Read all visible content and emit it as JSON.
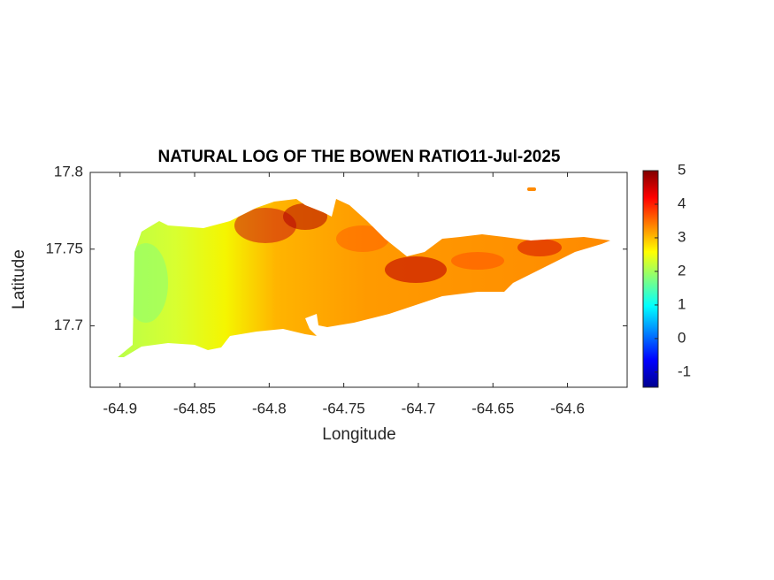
{
  "chart_data": {
    "type": "heatmap",
    "title": "NATURAL LOG OF THE BOWEN RATIO11-Jul-2025",
    "x_label": "Longitude",
    "y_label": "Latitude",
    "xlim": [
      -64.92,
      -64.56
    ],
    "xticks": [
      -64.9,
      -64.85,
      -64.8,
      -64.75,
      -64.7,
      -64.65,
      -64.6
    ],
    "ylim": [
      17.66,
      17.8
    ],
    "yticks": [
      17.7,
      17.75,
      17.8
    ],
    "colormap": "jet",
    "clim": [
      -1.45,
      5
    ],
    "cticks": [
      -1,
      0,
      1,
      2,
      3,
      4,
      5
    ]
  }
}
